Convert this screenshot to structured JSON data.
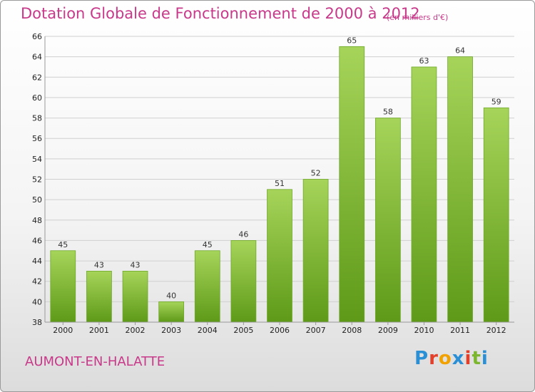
{
  "header": {
    "title": "Dotation Globale de Fonctionnement de 2000 à 2012",
    "unit": "(en milliers d'€)"
  },
  "footer": {
    "commune": "AUMONT-EN-HALATTE",
    "logo": {
      "letters": [
        "P",
        "r",
        "o",
        "x",
        "i",
        "t",
        "i"
      ],
      "colors": [
        "#2a8fd4",
        "#e3402b",
        "#f2a200",
        "#2a8fd4",
        "#e3402b",
        "#7cb62e",
        "#2a8fd4"
      ]
    }
  },
  "chart_data": {
    "type": "bar",
    "title": "Dotation Globale de Fonctionnement de 2000 à 2012",
    "xlabel": "",
    "ylabel": "",
    "categories": [
      "2000",
      "2001",
      "2002",
      "2003",
      "2004",
      "2005",
      "2006",
      "2007",
      "2008",
      "2009",
      "2010",
      "2011",
      "2012"
    ],
    "values": [
      45,
      43,
      43,
      40,
      45,
      46,
      51,
      52,
      65,
      58,
      63,
      64,
      59
    ],
    "ylim": [
      38,
      66
    ],
    "yticks": [
      38,
      40,
      42,
      44,
      46,
      48,
      50,
      52,
      54,
      56,
      58,
      60,
      62,
      64,
      66
    ],
    "grid": true,
    "legend": "none",
    "colors": {
      "bar_top": "#a6d45a",
      "bar_bottom": "#5e9a18",
      "grid": "#d0d0d0"
    }
  }
}
